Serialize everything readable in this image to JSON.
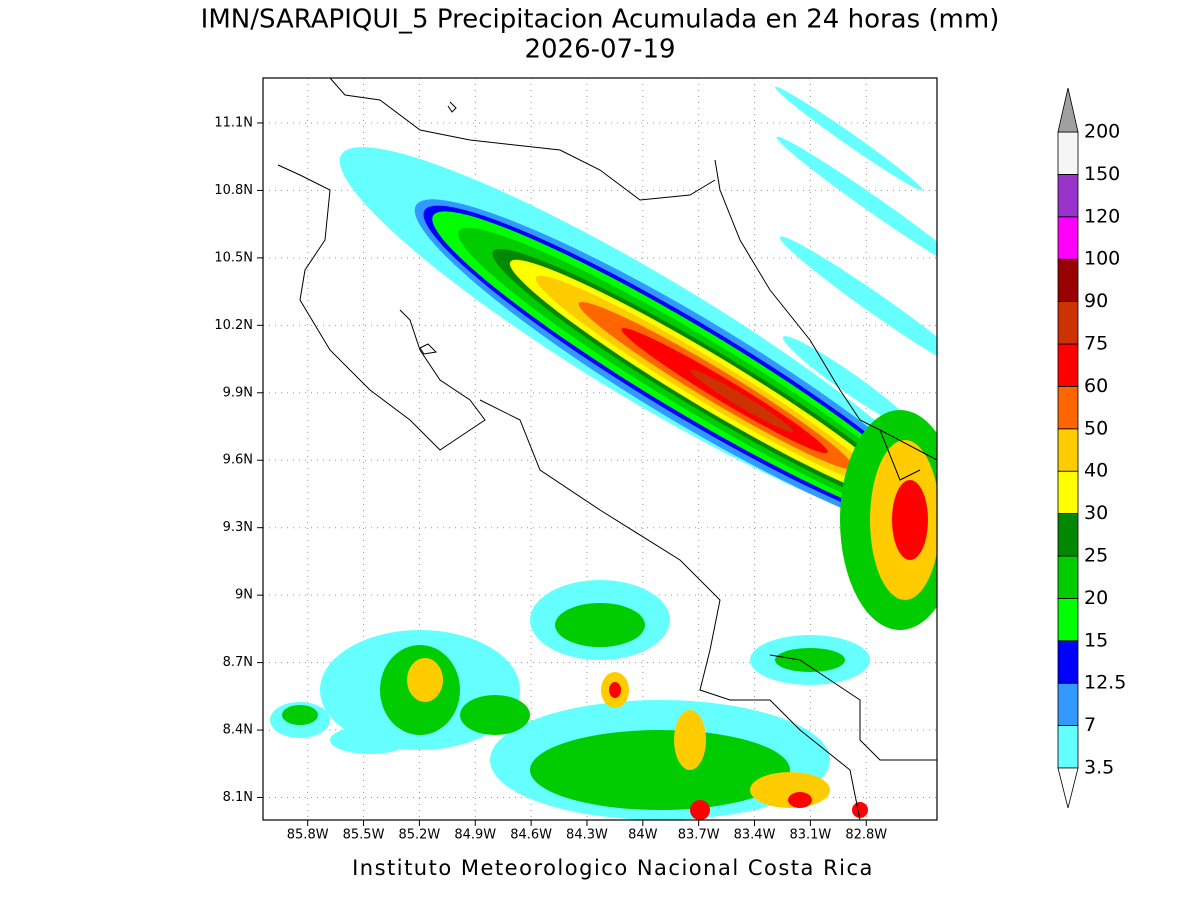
{
  "title": "IMN/SARAPIQUI_5 Precipitacion Acumulada en 24 horas (mm)",
  "subtitle": "2026-07-19",
  "footer": "Instituto Meteorologico Nacional Costa Rica",
  "map": {
    "xlim": [
      -86.04,
      -82.42
    ],
    "ylim": [
      8.0,
      11.3
    ],
    "xticks": [
      {
        "value": -85.8,
        "label": "85.8W"
      },
      {
        "value": -85.5,
        "label": "85.5W"
      },
      {
        "value": -85.2,
        "label": "85.2W"
      },
      {
        "value": -84.9,
        "label": "84.9W"
      },
      {
        "value": -84.6,
        "label": "84.6W"
      },
      {
        "value": -84.3,
        "label": "84.3W"
      },
      {
        "value": -84.0,
        "label": "84W"
      },
      {
        "value": -83.7,
        "label": "83.7W"
      },
      {
        "value": -83.4,
        "label": "83.4W"
      },
      {
        "value": -83.1,
        "label": "83.1W"
      },
      {
        "value": -82.8,
        "label": "82.8W"
      }
    ],
    "yticks": [
      {
        "value": 8.1,
        "label": "8.1N"
      },
      {
        "value": 8.4,
        "label": "8.4N"
      },
      {
        "value": 8.7,
        "label": "8.7N"
      },
      {
        "value": 9.0,
        "label": "9N"
      },
      {
        "value": 9.3,
        "label": "9.3N"
      },
      {
        "value": 9.6,
        "label": "9.6N"
      },
      {
        "value": 9.9,
        "label": "9.9N"
      },
      {
        "value": 10.2,
        "label": "10.2N"
      },
      {
        "value": 10.5,
        "label": "10.5N"
      },
      {
        "value": 10.8,
        "label": "10.8N"
      },
      {
        "value": 11.1,
        "label": "11.1N"
      }
    ],
    "grid": true
  },
  "colorbar": {
    "levels": [
      3.5,
      7,
      12.5,
      15,
      20,
      25,
      30,
      40,
      50,
      60,
      75,
      90,
      100,
      120,
      150,
      200
    ],
    "colors": [
      "#66ffff",
      "#3399ff",
      "#0000ff",
      "#00ff00",
      "#00cc00",
      "#008800",
      "#ffff00",
      "#ffcc00",
      "#ff6600",
      "#ff0000",
      "#cc3300",
      "#990000",
      "#ff00ff",
      "#9933cc",
      "#f5f5f5"
    ],
    "under_color": "#ffffff",
    "over_color": "#a0a0a0"
  }
}
